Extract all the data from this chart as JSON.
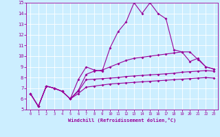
{
  "line1_y": [
    6.5,
    5.3,
    7.2,
    7.0,
    6.7,
    6.0,
    7.8,
    9.0,
    8.7,
    8.6,
    10.8,
    12.3,
    13.2,
    15.0,
    14.0,
    15.0,
    14.0,
    13.5,
    10.6,
    10.4,
    9.5,
    9.8,
    9.0,
    8.8
  ],
  "line2_y": [
    6.5,
    5.3,
    7.2,
    7.0,
    6.7,
    6.0,
    6.8,
    8.3,
    8.6,
    8.7,
    9.0,
    9.3,
    9.6,
    9.8,
    9.9,
    10.0,
    10.1,
    10.2,
    10.3,
    10.4,
    10.4,
    9.7,
    9.0,
    8.8
  ],
  "line3_y": [
    6.5,
    5.3,
    7.2,
    7.0,
    6.7,
    6.0,
    6.7,
    7.8,
    7.85,
    7.9,
    7.95,
    8.0,
    8.1,
    8.15,
    8.2,
    8.25,
    8.3,
    8.35,
    8.4,
    8.5,
    8.55,
    8.6,
    8.65,
    8.6
  ],
  "line4_y": [
    6.5,
    5.3,
    7.2,
    7.0,
    6.7,
    6.0,
    6.5,
    7.1,
    7.2,
    7.3,
    7.4,
    7.45,
    7.5,
    7.55,
    7.6,
    7.65,
    7.7,
    7.75,
    7.8,
    7.85,
    7.9,
    7.95,
    8.0,
    7.95
  ],
  "color": "#990099",
  "bg_color": "#cceeff",
  "grid_color": "#ffffff",
  "xlabel": "Windchill (Refroidissement éolien,°C)",
  "ylim": [
    5,
    15
  ],
  "xlim": [
    -0.5,
    23.5
  ],
  "yticks": [
    5,
    6,
    7,
    8,
    9,
    10,
    11,
    12,
    13,
    14,
    15
  ],
  "xticks": [
    0,
    1,
    2,
    3,
    4,
    5,
    6,
    7,
    8,
    9,
    10,
    11,
    12,
    13,
    14,
    15,
    16,
    17,
    18,
    19,
    20,
    21,
    22,
    23
  ]
}
